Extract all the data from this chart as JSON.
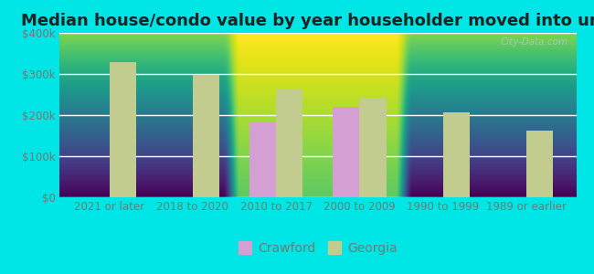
{
  "title": "Median house/condo value by year householder moved into unit",
  "categories": [
    "2021 or later",
    "2018 to 2020",
    "2010 to 2017",
    "2000 to 2009",
    "1990 to 1999",
    "1989 or earlier"
  ],
  "crawford_values": [
    null,
    null,
    182000,
    220000,
    null,
    null
  ],
  "georgia_values": [
    330000,
    298000,
    265000,
    242000,
    207000,
    163000
  ],
  "crawford_color": "#d4a0d4",
  "georgia_color": "#c2cc8e",
  "bg_top": "#f0faf0",
  "bg_bottom": "#d8f5d8",
  "outer_background": "#00e5e5",
  "ylim": [
    0,
    400000
  ],
  "yticks": [
    0,
    100000,
    200000,
    300000,
    400000
  ],
  "ytick_labels": [
    "$0",
    "$100k",
    "$200k",
    "$300k",
    "$400k"
  ],
  "bar_width": 0.32,
  "watermark": "City-Data.com",
  "legend_labels": [
    "Crawford",
    "Georgia"
  ],
  "title_fontsize": 13,
  "tick_fontsize": 8.5,
  "legend_fontsize": 10,
  "tick_color": "#777777",
  "grid_color": "#ffffff",
  "figsize": [
    6.5,
    3.0
  ],
  "dpi": 100
}
